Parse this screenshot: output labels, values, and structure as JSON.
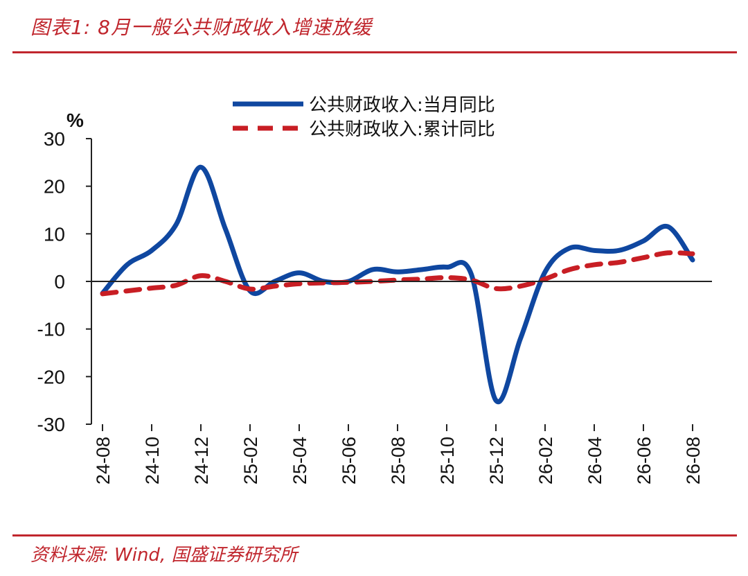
{
  "figure": {
    "title": "图表1: 8月一般公共财政收入增速放缓",
    "source": "资料来源: Wind, 国盛证券研究所"
  },
  "colors": {
    "accent": "#c0262d",
    "series_monthly": "#0f47a0",
    "series_cumulative": "#c81e24"
  },
  "chart_data": {
    "type": "line",
    "title": "",
    "xlabel": "",
    "ylabel": "%",
    "ylim": [
      -30,
      30
    ],
    "yticks": [
      30,
      20,
      10,
      0,
      -10,
      -20,
      -30
    ],
    "grid": false,
    "legend": "top-center",
    "categories": [
      "24-08",
      "24-09",
      "24-10",
      "24-11",
      "24-12",
      "25-01",
      "25-02",
      "25-03",
      "25-04",
      "25-05",
      "25-06",
      "25-07",
      "25-08",
      "25-09",
      "25-10",
      "25-11",
      "25-12",
      "26-01",
      "26-02",
      "26-03",
      "26-04",
      "26-05",
      "26-06",
      "26-07",
      "26-08"
    ],
    "tick_labels": [
      "24-08",
      "24-10",
      "24-12",
      "25-02",
      "25-04",
      "25-06",
      "25-08",
      "25-10",
      "25-12",
      "26-02",
      "26-04",
      "26-06",
      "26-08"
    ],
    "series": [
      {
        "name": "公共财政收入:当月同比",
        "style": "solid",
        "values": [
          -2.5,
          3.5,
          6.5,
          12,
          24,
          11,
          -2,
          0,
          1.8,
          0,
          0,
          2.5,
          2,
          2.5,
          3,
          1.5,
          -25,
          -12,
          2,
          7,
          6.5,
          6.5,
          8.5,
          11.5,
          4.5
        ]
      },
      {
        "name": "公共财政收入:累计同比",
        "style": "dashed",
        "values": [
          -2.6,
          -2,
          -1.4,
          -0.8,
          1.2,
          0,
          -1.6,
          -1,
          -0.5,
          -0.3,
          -0.2,
          0,
          0.3,
          0.5,
          0.8,
          0.3,
          -1.5,
          -1,
          0.5,
          2.5,
          3.5,
          4,
          5,
          6,
          5.8
        ]
      }
    ]
  }
}
